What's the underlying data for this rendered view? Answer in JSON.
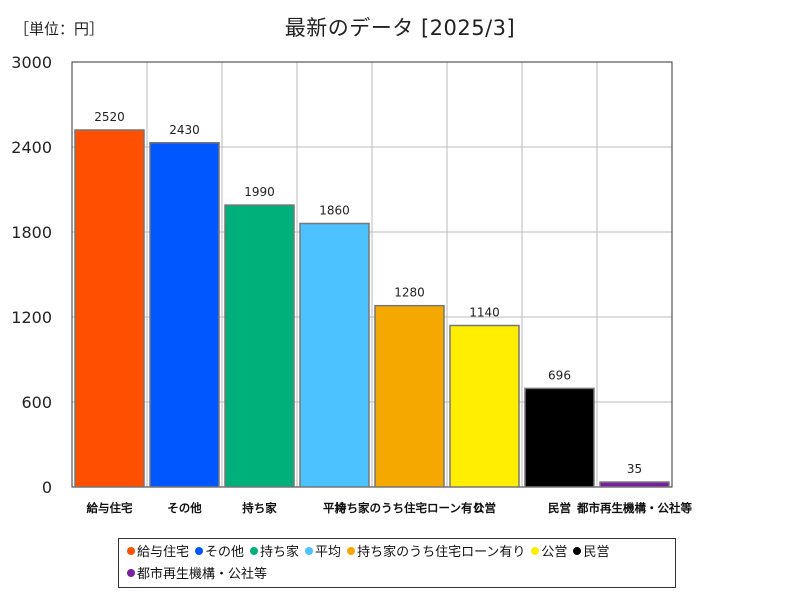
{
  "unit_label": "［単位：円］",
  "title": "最新のデータ [2025/3]",
  "chart_data": {
    "type": "bar",
    "categories": [
      "給与住宅",
      "その他",
      "持ち家",
      "平均",
      "持ち家のうち住宅ローン有り",
      "公営",
      "民営",
      "都市再生機構・公社等"
    ],
    "values": [
      2520,
      2430,
      1990,
      1860,
      1280,
      1140,
      696,
      35
    ],
    "value_labels": [
      "2520",
      "2430",
      "1990",
      "1860",
      "1280",
      "1140",
      "696",
      "35"
    ],
    "colors": [
      "#ff4f00",
      "#0057ff",
      "#00b07a",
      "#4cc3ff",
      "#f5a800",
      "#ffee00",
      "#000000",
      "#7b1fa2"
    ],
    "ylim": [
      0,
      3000
    ],
    "yticks": [
      0,
      600,
      1200,
      1800,
      2400,
      3000
    ],
    "ytick_labels": [
      "0",
      "600",
      "1200",
      "1800",
      "2400",
      "3000"
    ],
    "grid": true,
    "legend_position": "bottom"
  }
}
